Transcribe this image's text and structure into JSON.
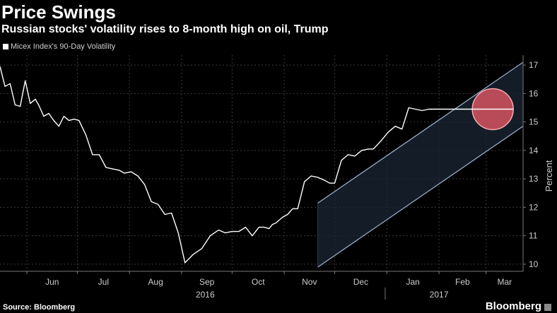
{
  "header": {
    "title": "Price Swings",
    "subtitle": "Russian stocks' volatility rises to 8-month high on oil, Trump"
  },
  "footer": {
    "source": "Source: Bloomberg",
    "brand": "Bloomberg"
  },
  "colors": {
    "background": "#000000",
    "line": "#ffffff",
    "channel_fill": "#1b2636",
    "channel_edge": "#9fb6d4",
    "highlight_fill": "#e25663",
    "highlight_edge": "#f6aab1",
    "grid": "#3a3a3a",
    "axis_text": "#cccccc"
  },
  "chart_data": {
    "type": "line",
    "title": "Price Swings",
    "subtitle": "Russian stocks' volatility rises to 8-month high on oil, Trump",
    "ylabel": "Percent",
    "xlabel": "",
    "ylim": [
      9.75,
      17.35
    ],
    "xlim": [
      "2016-05-16",
      "2017-03-23"
    ],
    "yticks": [
      10,
      11,
      12,
      13,
      14,
      15,
      16,
      17
    ],
    "month_ticks": [
      {
        "label": "Jun",
        "date": "2016-06-01"
      },
      {
        "label": "Jul",
        "date": "2016-07-01"
      },
      {
        "label": "Aug",
        "date": "2016-08-01"
      },
      {
        "label": "Sep",
        "date": "2016-09-01"
      },
      {
        "label": "Oct",
        "date": "2016-10-01"
      },
      {
        "label": "Nov",
        "date": "2016-11-01"
      },
      {
        "label": "Dec",
        "date": "2016-12-01"
      },
      {
        "label": "Jan",
        "date": "2017-01-01"
      },
      {
        "label": "Feb",
        "date": "2017-02-01"
      },
      {
        "label": "Mar",
        "date": "2017-03-01"
      }
    ],
    "year_labels": [
      {
        "label": "2016",
        "date": "2016-09-15"
      },
      {
        "label": "2017",
        "date": "2017-02-01"
      }
    ],
    "year_divider": "2016-12-31",
    "grid": true,
    "legend": {
      "position": "top-left",
      "entries": [
        "Micex Index's 90-Day Volatility"
      ]
    },
    "series": [
      {
        "name": "Micex Index's 90-Day Volatility",
        "x": [
          "2016-05-16",
          "2016-05-19",
          "2016-05-22",
          "2016-05-25",
          "2016-05-28",
          "2016-05-31",
          "2016-06-03",
          "2016-06-06",
          "2016-06-08",
          "2016-06-11",
          "2016-06-14",
          "2016-06-17",
          "2016-06-20",
          "2016-06-23",
          "2016-06-26",
          "2016-06-29",
          "2016-07-02",
          "2016-07-06",
          "2016-07-10",
          "2016-07-14",
          "2016-07-18",
          "2016-07-22",
          "2016-07-26",
          "2016-07-29",
          "2016-08-02",
          "2016-08-06",
          "2016-08-10",
          "2016-08-14",
          "2016-08-18",
          "2016-08-22",
          "2016-08-26",
          "2016-08-30",
          "2016-09-03",
          "2016-09-08",
          "2016-09-13",
          "2016-09-18",
          "2016-09-23",
          "2016-09-27",
          "2016-10-01",
          "2016-10-05",
          "2016-10-09",
          "2016-10-13",
          "2016-10-17",
          "2016-10-20",
          "2016-10-23",
          "2016-10-25",
          "2016-10-27",
          "2016-10-31",
          "2016-11-03",
          "2016-11-06",
          "2016-11-09",
          "2016-11-13",
          "2016-11-17",
          "2016-11-21",
          "2016-11-25",
          "2016-11-28",
          "2016-12-01",
          "2016-12-05",
          "2016-12-09",
          "2016-12-13",
          "2016-12-17",
          "2016-12-21",
          "2016-12-24",
          "2016-12-28",
          "2017-01-02",
          "2017-01-06",
          "2017-01-10",
          "2017-01-14",
          "2017-01-18",
          "2017-01-22",
          "2017-01-26",
          "2017-01-31",
          "2017-02-04",
          "2017-02-08",
          "2017-02-12",
          "2017-02-16",
          "2017-02-19",
          "2017-02-22",
          "2017-02-25",
          "2017-02-28",
          "2017-03-03",
          "2017-03-06",
          "2017-03-09",
          "2017-03-13",
          "2017-03-17"
        ],
        "values": [
          16.95,
          16.25,
          16.35,
          15.6,
          15.55,
          16.45,
          15.65,
          15.8,
          15.6,
          15.2,
          15.3,
          15.05,
          14.85,
          15.2,
          15.05,
          15.1,
          15.05,
          14.55,
          13.85,
          13.85,
          13.4,
          13.35,
          13.3,
          13.2,
          13.25,
          13.1,
          12.8,
          12.2,
          12.1,
          11.75,
          11.8,
          11.1,
          10.05,
          10.35,
          10.55,
          11.0,
          11.2,
          11.1,
          11.15,
          11.15,
          11.3,
          11.0,
          11.3,
          11.3,
          11.25,
          11.4,
          11.45,
          11.65,
          11.75,
          11.95,
          11.95,
          12.9,
          13.1,
          13.05,
          12.95,
          12.85,
          12.85,
          13.65,
          13.85,
          13.8,
          14.0,
          14.05,
          14.05,
          14.3,
          14.65,
          14.85,
          14.75,
          15.5,
          15.45,
          15.4,
          15.45,
          15.45,
          15.45,
          15.45,
          15.45,
          15.45,
          15.45,
          15.45,
          15.45,
          15.45,
          15.45,
          15.45,
          15.45,
          15.45,
          15.45
        ]
      }
    ],
    "annotations": [
      {
        "type": "channel",
        "x_start": "2016-11-21",
        "x_end": "2017-03-23",
        "lower": [
          9.9,
          14.85
        ],
        "upper": [
          12.15,
          17.1
        ]
      },
      {
        "type": "highlight-circle",
        "center": {
          "x": "2017-03-05",
          "y": 15.45
        }
      }
    ]
  }
}
